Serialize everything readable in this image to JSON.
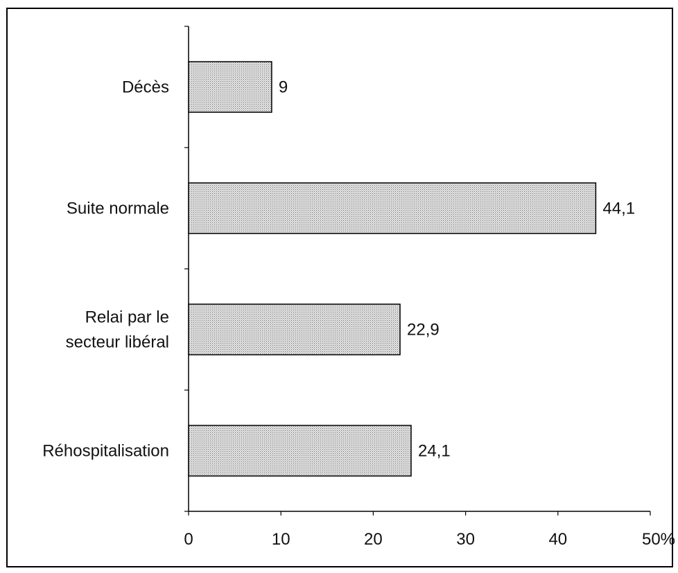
{
  "chart_data": {
    "type": "bar",
    "orientation": "horizontal",
    "categories": [
      [
        "Décès"
      ],
      [
        "Suite normale"
      ],
      [
        "Relai par le",
        "secteur libéral"
      ],
      [
        "Réhospitalisation"
      ]
    ],
    "values": [
      9,
      44.1,
      22.9,
      24.1
    ],
    "data_labels": [
      "9",
      "44,1",
      "22,9",
      "24,1"
    ],
    "xlim": [
      0,
      50
    ],
    "x_ticks": [
      0,
      10,
      20,
      30,
      40,
      50
    ],
    "x_tick_labels": [
      "0",
      "10",
      "20",
      "30",
      "40",
      "50%"
    ],
    "grid": false,
    "legend": "none",
    "bar_color": "#bfbfbf"
  }
}
